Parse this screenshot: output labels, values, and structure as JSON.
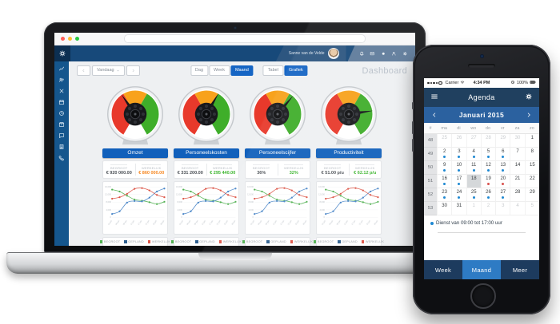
{
  "laptop": {
    "browser": {
      "traffic_lights": [
        "#ff5f57",
        "#febc2e",
        "#28c840"
      ]
    },
    "header": {
      "user_name": "Sanne van de Velde",
      "icons": [
        "bell-icon",
        "mail-icon",
        "circle-icon",
        "user-icon",
        "gear-icon"
      ]
    },
    "sidebar": {
      "icons": [
        "chart-icon",
        "users-icon",
        "close-icon",
        "calendar-icon",
        "clock-icon",
        "box-icon",
        "chat-icon",
        "doc-icon",
        "phone-icon"
      ]
    },
    "toolbar": {
      "today_label": "Vandaag",
      "view_buttons": [
        {
          "label": "Dag",
          "active": false
        },
        {
          "label": "Week",
          "active": false
        },
        {
          "label": "Maand",
          "active": true
        }
      ],
      "display_buttons": [
        {
          "label": "Tabel",
          "active": false
        },
        {
          "label": "Grafiek",
          "active": true
        }
      ],
      "page_title": "Dashboard"
    },
    "gauge_colors": {
      "red": "#e8392b",
      "orange": "#f8a21c",
      "green": "#3fae2a"
    },
    "cards": [
      {
        "title": "Omzet",
        "needle_deg": -35,
        "left_label": "BEGROOT",
        "left_value": "€ 920 000.00",
        "right_label": "WERKELIJK",
        "right_value": "€ 860 000.00",
        "right_color": "#f6861f"
      },
      {
        "title": "Personeelskosten",
        "needle_deg": 30,
        "left_label": "BEGROOT",
        "left_value": "€ 331 200.00",
        "right_label": "WERKELIJK",
        "right_value": "€ 295 440.00",
        "right_color": "#3cb52e"
      },
      {
        "title": "Personeelscijfer",
        "needle_deg": 40,
        "left_label": "BEGROOT",
        "left_value": "36%",
        "right_label": "WERKELIJK",
        "right_value": "32%",
        "right_color": "#3cb52e"
      },
      {
        "title": "Productiviteit",
        "needle_deg": 82,
        "left_label": "BEGROOT",
        "left_value": "€ 51.00 p/u",
        "right_label": "WERKELIJK",
        "right_value": "€ 62.12 p/u",
        "right_color": "#3cb52e"
      }
    ],
    "legend": [
      {
        "label": "BEGROOT",
        "color": "#52b152"
      },
      {
        "label": "GEPLAND",
        "color": "#2e5f8f"
      },
      {
        "label": "WERKELIJK",
        "color": "#dd5547"
      }
    ],
    "chart_data": {
      "type": "line",
      "x": [
        "01 jan",
        "05 jan",
        "09 jan",
        "13 jan",
        "17 jan",
        "21 jan",
        "25 jan",
        "29 jan"
      ],
      "series": [
        {
          "name": "BEGROOT",
          "color": "#52b152",
          "values": [
            14600,
            13600,
            11400,
            9400,
            8800,
            8000,
            7000,
            8200
          ]
        },
        {
          "name": "GEPLAND",
          "color": "#4a86c8",
          "values": [
            1800,
            3200,
            7800,
            8600,
            8400,
            10400,
            13600,
            15200
          ]
        },
        {
          "name": "WERKELIJK",
          "color": "#dd5547",
          "values": [
            9800,
            10600,
            12400,
            15000,
            15400,
            14200,
            11800,
            10600
          ]
        }
      ],
      "ylim": [
        0,
        16000
      ],
      "yticks": [
        "16,000",
        "12,000",
        "8,000",
        "4,000",
        "0"
      ],
      "grid": true,
      "legend_position": "bottom"
    }
  },
  "phone": {
    "status": {
      "carrier": "Carrier",
      "time": "4:34 PM",
      "battery": "100%"
    },
    "nav_title": "Agenda",
    "month": "Januari 2015",
    "day_headers": [
      "#",
      "ma",
      "di",
      "wo",
      "do",
      "vr",
      "za",
      "zo"
    ],
    "dot_colors": {
      "blue": "#1e88d2",
      "red": "#d9534f"
    },
    "weeks": [
      {
        "num": "48",
        "days": [
          {
            "d": "25",
            "muted": true
          },
          {
            "d": "26",
            "muted": true
          },
          {
            "d": "27",
            "muted": true
          },
          {
            "d": "28",
            "muted": true
          },
          {
            "d": "29",
            "muted": true
          },
          {
            "d": "30",
            "muted": true
          },
          {
            "d": "1"
          }
        ]
      },
      {
        "num": "49",
        "days": [
          {
            "d": "2",
            "dot": "blue"
          },
          {
            "d": "3",
            "dot": "blue"
          },
          {
            "d": "4",
            "dot": "blue"
          },
          {
            "d": "5",
            "dot": "blue"
          },
          {
            "d": "6",
            "dot": "blue"
          },
          {
            "d": "7"
          },
          {
            "d": "8"
          }
        ]
      },
      {
        "num": "50",
        "days": [
          {
            "d": "9",
            "dot": "blue"
          },
          {
            "d": "10",
            "dot": "blue"
          },
          {
            "d": "11",
            "dot": "blue"
          },
          {
            "d": "12",
            "dot": "blue"
          },
          {
            "d": "13",
            "dot": "blue"
          },
          {
            "d": "14"
          },
          {
            "d": "15"
          }
        ]
      },
      {
        "num": "51",
        "days": [
          {
            "d": "16",
            "dot": "blue"
          },
          {
            "d": "17",
            "dot": "blue"
          },
          {
            "d": "18",
            "selected": true
          },
          {
            "d": "19",
            "dot": "red"
          },
          {
            "d": "20",
            "dot": "red"
          },
          {
            "d": "21"
          },
          {
            "d": "22"
          }
        ]
      },
      {
        "num": "52",
        "days": [
          {
            "d": "23",
            "dot": "blue"
          },
          {
            "d": "24",
            "dot": "blue"
          },
          {
            "d": "25",
            "dot": "blue"
          },
          {
            "d": "26",
            "dot": "blue"
          },
          {
            "d": "27",
            "dot": "blue"
          },
          {
            "d": "28"
          },
          {
            "d": "29"
          }
        ]
      },
      {
        "num": "53",
        "days": [
          {
            "d": "30"
          },
          {
            "d": "31"
          },
          {
            "d": "1",
            "muted": true
          },
          {
            "d": "2",
            "muted": true
          },
          {
            "d": "3",
            "muted": true
          },
          {
            "d": "4",
            "muted": true
          },
          {
            "d": "5",
            "muted": true
          }
        ]
      }
    ],
    "event_note": "Dienst van 09:00 tot 17:00 uur",
    "tabs": [
      {
        "label": "Week",
        "active": false
      },
      {
        "label": "Maand",
        "active": true
      },
      {
        "label": "Meer",
        "active": false
      }
    ]
  }
}
